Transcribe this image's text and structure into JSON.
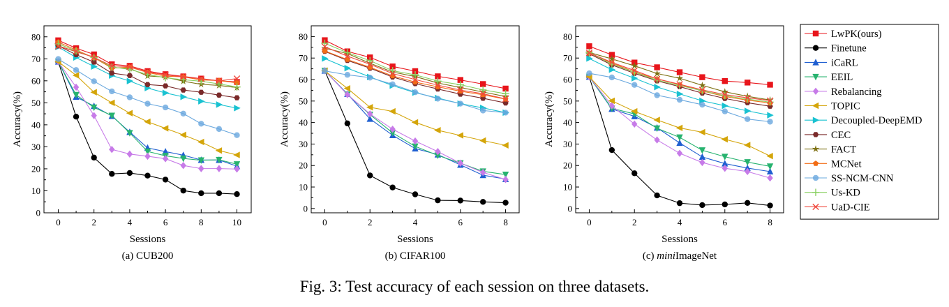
{
  "caption": "Fig. 3: Test accuracy of each session on three datasets.",
  "legend": {
    "entries": [
      {
        "label": "LwPK(ours)",
        "color": "#e8151b",
        "marker": "square"
      },
      {
        "label": "Finetune",
        "color": "#000000",
        "marker": "circle"
      },
      {
        "label": "iCaRL",
        "color": "#1f5fd1",
        "marker": "triangle-up"
      },
      {
        "label": "EEIL",
        "color": "#27b36f",
        "marker": "triangle-down"
      },
      {
        "label": "Rebalancing",
        "color": "#c77be8",
        "marker": "diamond"
      },
      {
        "label": "TOPIC",
        "color": "#d4a50a",
        "marker": "triangle-left"
      },
      {
        "label": "Decoupled-DeepEMD",
        "color": "#19c2d1",
        "marker": "triangle-right"
      },
      {
        "label": "CEC",
        "color": "#7a2a2a",
        "marker": "hexagon"
      },
      {
        "label": "FACT",
        "color": "#7d7012",
        "marker": "star"
      },
      {
        "label": "MCNet",
        "color": "#f26d16",
        "marker": "pentagon"
      },
      {
        "label": "SS-NCM-CNN",
        "color": "#6aa8de",
        "marker": "circle-light"
      },
      {
        "label": "Us-KD",
        "color": "#88d060",
        "marker": "plus"
      },
      {
        "label": "UaD-CIE",
        "color": "#f0493e",
        "marker": "x"
      }
    ]
  },
  "chart_data": [
    {
      "type": "line",
      "subtitle": "(a) CUB200",
      "xlabel": "Sessions",
      "ylabel": "Accuracy(%)",
      "xlim": [
        -0.8,
        10.8
      ],
      "ylim": [
        0,
        85
      ],
      "xticks": [
        0,
        2,
        4,
        6,
        8,
        10
      ],
      "yticks": [
        0,
        10,
        20,
        30,
        40,
        50,
        60,
        70,
        80
      ],
      "x": [
        0,
        1,
        2,
        3,
        4,
        5,
        6,
        7,
        8,
        9,
        10
      ],
      "series": [
        {
          "name": "LwPK(ours)",
          "values": [
            78.4,
            74.8,
            72.0,
            67.5,
            66.8,
            64.4,
            63.0,
            62.0,
            61.0,
            60.0,
            59.5
          ]
        },
        {
          "name": "Finetune",
          "values": [
            68.7,
            43.7,
            25.1,
            17.7,
            18.1,
            16.9,
            15.1,
            10.1,
            8.9,
            8.9,
            8.5
          ]
        },
        {
          "name": "iCaRL",
          "values": [
            68.7,
            52.7,
            48.5,
            44.0,
            36.7,
            29.5,
            27.8,
            26.2,
            24.0,
            24.0,
            21.2
          ]
        },
        {
          "name": "EEIL",
          "values": [
            68.7,
            53.6,
            47.9,
            44.2,
            36.3,
            27.9,
            25.9,
            24.7,
            23.9,
            24.1,
            22.1
          ]
        },
        {
          "name": "Rebalancing",
          "values": [
            68.7,
            57.1,
            44.2,
            28.8,
            26.7,
            25.7,
            24.6,
            21.5,
            20.1,
            20.1,
            19.9
          ]
        },
        {
          "name": "TOPIC",
          "values": [
            68.7,
            62.5,
            54.8,
            50.0,
            45.3,
            41.4,
            38.4,
            35.4,
            32.2,
            28.3,
            26.3
          ]
        },
        {
          "name": "Decoupled-DeepEMD",
          "values": [
            75.4,
            70.6,
            66.5,
            62.4,
            59.9,
            56.7,
            54.5,
            52.7,
            50.7,
            49.2,
            47.6
          ]
        },
        {
          "name": "CEC",
          "values": [
            75.9,
            71.9,
            68.5,
            63.5,
            62.4,
            58.3,
            57.7,
            55.8,
            54.8,
            53.5,
            52.3
          ]
        },
        {
          "name": "FACT",
          "values": [
            75.9,
            73.2,
            70.8,
            66.1,
            65.6,
            62.2,
            61.7,
            59.8,
            58.4,
            57.9,
            56.9
          ]
        },
        {
          "name": "MCNet",
          "values": [
            77.6,
            74.0,
            70.5,
            65.8,
            66.2,
            63.8,
            62.1,
            61.8,
            60.4,
            60.1,
            59.1
          ]
        },
        {
          "name": "SS-NCM-CNN",
          "values": [
            69.9,
            64.9,
            59.8,
            55.2,
            52.5,
            49.6,
            47.9,
            45.1,
            40.5,
            38.1,
            35.3
          ]
        },
        {
          "name": "Us-KD",
          "values": [
            76.8,
            73.6,
            70.6,
            66.3,
            65.2,
            62.9,
            61.4,
            60.5,
            59.8,
            58.6,
            57.2
          ]
        },
        {
          "name": "UaD-CIE",
          "values": [
            75.7,
            73.4,
            70.6,
            66.8,
            66.4,
            64.0,
            62.7,
            61.8,
            60.9,
            60.0,
            61.0
          ]
        }
      ]
    },
    {
      "type": "line",
      "subtitle": "(b) CIFAR100",
      "xlabel": "Sessions",
      "ylabel": "Accuracy(%)",
      "xlim": [
        -0.6,
        8.6
      ],
      "ylim": [
        -2,
        85
      ],
      "xticks": [
        0,
        2,
        4,
        6,
        8
      ],
      "yticks": [
        0,
        10,
        20,
        30,
        40,
        50,
        60,
        70,
        80
      ],
      "x": [
        0,
        1,
        2,
        3,
        4,
        5,
        6,
        7,
        8
      ],
      "series": [
        {
          "name": "LwPK(ours)",
          "values": [
            78.3,
            73.1,
            70.3,
            66.1,
            63.9,
            61.5,
            59.8,
            57.9,
            55.8
          ]
        },
        {
          "name": "Finetune",
          "values": [
            64.1,
            39.6,
            15.4,
            9.8,
            6.6,
            3.8,
            3.7,
            3.1,
            2.7
          ]
        },
        {
          "name": "iCaRL",
          "values": [
            64.1,
            53.3,
            41.7,
            34.1,
            27.9,
            25.1,
            20.3,
            15.5,
            13.7
          ]
        },
        {
          "name": "EEIL",
          "values": [
            64.1,
            53.1,
            43.7,
            35.2,
            28.9,
            24.7,
            21.1,
            17.3,
            15.8
          ]
        },
        {
          "name": "Rebalancing",
          "values": [
            64.1,
            53.0,
            44.0,
            36.9,
            31.4,
            26.5,
            21.1,
            16.8,
            13.5
          ]
        },
        {
          "name": "TOPIC",
          "values": [
            64.1,
            55.9,
            47.1,
            45.2,
            40.1,
            36.4,
            34.0,
            31.6,
            29.4
          ]
        },
        {
          "name": "Decoupled-DeepEMD",
          "values": [
            69.8,
            65.3,
            61.2,
            57.2,
            53.9,
            51.4,
            48.8,
            46.8,
            44.6
          ]
        },
        {
          "name": "CEC",
          "values": [
            73.1,
            68.9,
            65.3,
            61.2,
            58.1,
            55.6,
            53.2,
            51.3,
            49.1
          ]
        },
        {
          "name": "FACT",
          "values": [
            74.6,
            72.1,
            67.6,
            63.5,
            61.4,
            58.4,
            56.3,
            54.2,
            52.1
          ]
        },
        {
          "name": "MCNet",
          "values": [
            73.3,
            69.3,
            65.7,
            61.7,
            58.8,
            56.6,
            54.6,
            52.9,
            50.9
          ]
        },
        {
          "name": "SS-NCM-CNN",
          "values": [
            64.0,
            62.2,
            60.9,
            57.8,
            54.1,
            51.1,
            48.8,
            45.6,
            44.6
          ]
        },
        {
          "name": "Us-KD",
          "values": [
            76.9,
            72.5,
            68.8,
            64.1,
            62.2,
            59.3,
            57.6,
            55.2,
            53.4
          ]
        },
        {
          "name": "UaD-CIE",
          "values": [
            75.3,
            70.9,
            67.1,
            62.8,
            60.0,
            57.4,
            55.1,
            53.4,
            51.0
          ]
        }
      ]
    },
    {
      "type": "line",
      "subtitle": "(c) miniImageNet",
      "subtitle_italic": "mini",
      "subtitle_rest": "ImageNet",
      "subtitle_prefix": "(c) ",
      "xlabel": "Sessions",
      "ylabel": "Accuracy(%)",
      "xlim": [
        -0.6,
        8.6
      ],
      "ylim": [
        -2,
        85
      ],
      "xticks": [
        0,
        2,
        4,
        6,
        8
      ],
      "yticks": [
        0,
        10,
        20,
        30,
        40,
        50,
        60,
        70,
        80
      ],
      "x": [
        0,
        1,
        2,
        3,
        4,
        5,
        6,
        7,
        8
      ],
      "series": [
        {
          "name": "LwPK(ours)",
          "values": [
            75.5,
            71.5,
            67.9,
            65.7,
            63.4,
            61.1,
            59.3,
            58.6,
            57.6
          ]
        },
        {
          "name": "Finetune",
          "values": [
            61.3,
            27.2,
            16.4,
            6.1,
            2.5,
            1.6,
            1.9,
            2.6,
            1.4
          ]
        },
        {
          "name": "iCaRL",
          "values": [
            61.3,
            46.3,
            42.9,
            37.6,
            30.5,
            24.0,
            20.9,
            18.8,
            17.2
          ]
        },
        {
          "name": "EEIL",
          "values": [
            61.3,
            46.6,
            44.0,
            37.3,
            33.1,
            27.1,
            24.1,
            21.6,
            19.6
          ]
        },
        {
          "name": "Rebalancing",
          "values": [
            61.3,
            47.8,
            39.3,
            31.9,
            25.7,
            21.4,
            18.7,
            17.2,
            14.2
          ]
        },
        {
          "name": "TOPIC",
          "values": [
            61.3,
            50.1,
            45.2,
            41.2,
            37.5,
            35.5,
            32.2,
            29.5,
            24.4
          ]
        },
        {
          "name": "Decoupled-DeepEMD",
          "values": [
            69.8,
            64.6,
            60.6,
            56.5,
            53.3,
            50.1,
            47.8,
            45.4,
            43.4
          ]
        },
        {
          "name": "CEC",
          "values": [
            72.0,
            66.8,
            62.9,
            59.4,
            56.7,
            53.7,
            51.2,
            49.2,
            47.6
          ]
        },
        {
          "name": "FACT",
          "values": [
            72.6,
            69.6,
            66.4,
            62.8,
            60.6,
            57.3,
            54.3,
            52.2,
            50.5
          ]
        },
        {
          "name": "MCNet",
          "values": [
            72.3,
            67.7,
            63.5,
            60.3,
            57.6,
            54.7,
            52.1,
            50.4,
            49.1
          ]
        },
        {
          "name": "SS-NCM-CNN",
          "values": [
            62.9,
            61.0,
            57.5,
            52.7,
            50.6,
            48.3,
            45.2,
            41.6,
            40.4
          ]
        },
        {
          "name": "Us-KD",
          "values": [
            72.4,
            67.2,
            63.4,
            59.7,
            57.2,
            54.8,
            52.5,
            50.9,
            49.5
          ]
        },
        {
          "name": "UaD-CIE",
          "values": [
            72.4,
            68.0,
            64.2,
            60.3,
            57.8,
            55.2,
            53.0,
            51.5,
            50.2
          ]
        }
      ]
    }
  ]
}
